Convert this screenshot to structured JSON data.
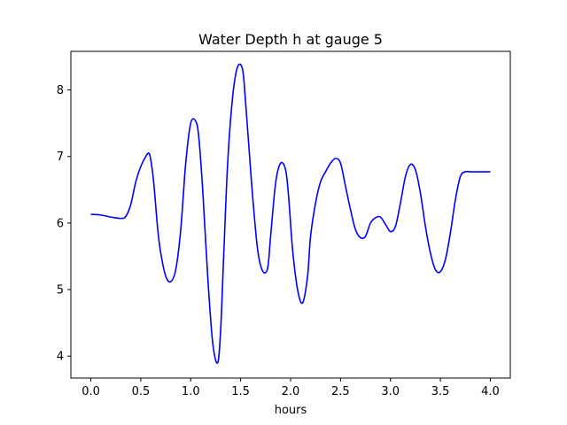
{
  "chart_data": {
    "type": "line",
    "title": "Water Depth h at gauge 5",
    "xlabel": "hours",
    "ylabel": "",
    "xlim": [
      -0.2,
      4.2
    ],
    "ylim": [
      3.67,
      8.58
    ],
    "xticks": [
      0.0,
      0.5,
      1.0,
      1.5,
      2.0,
      2.5,
      3.0,
      3.5,
      4.0
    ],
    "xtick_labels": [
      "0.0",
      "0.5",
      "1.0",
      "1.5",
      "2.0",
      "2.5",
      "3.0",
      "3.5",
      "4.0"
    ],
    "yticks": [
      4,
      5,
      6,
      7,
      8
    ],
    "ytick_labels": [
      "4",
      "5",
      "6",
      "7",
      "8"
    ],
    "grid": false,
    "series": [
      {
        "color": "#0000ff",
        "x": [
          0.0,
          0.1,
          0.2,
          0.3,
          0.35,
          0.4,
          0.45,
          0.5,
          0.55,
          0.58,
          0.6,
          0.63,
          0.67,
          0.7,
          0.75,
          0.8,
          0.85,
          0.9,
          0.95,
          1.0,
          1.05,
          1.08,
          1.12,
          1.17,
          1.22,
          1.27,
          1.3,
          1.33,
          1.37,
          1.42,
          1.47,
          1.52,
          1.55,
          1.58,
          1.62,
          1.67,
          1.72,
          1.77,
          1.8,
          1.85,
          1.9,
          1.95,
          1.98,
          2.02,
          2.07,
          2.12,
          2.17,
          2.2,
          2.25,
          2.3,
          2.35,
          2.4,
          2.45,
          2.5,
          2.55,
          2.6,
          2.65,
          2.7,
          2.75,
          2.8,
          2.85,
          2.9,
          2.95,
          3.0,
          3.05,
          3.1,
          3.15,
          3.2,
          3.25,
          3.3,
          3.35,
          3.4,
          3.45,
          3.5,
          3.55,
          3.6,
          3.65,
          3.7,
          3.75,
          3.8,
          3.85,
          3.9,
          3.95,
          4.0
        ],
        "y": [
          6.13,
          6.12,
          6.09,
          6.07,
          6.1,
          6.28,
          6.62,
          6.85,
          7.0,
          7.05,
          6.95,
          6.6,
          5.9,
          5.55,
          5.2,
          5.12,
          5.3,
          5.9,
          6.9,
          7.5,
          7.53,
          7.3,
          6.5,
          5.2,
          4.2,
          3.9,
          4.4,
          5.5,
          6.9,
          7.9,
          8.35,
          8.3,
          7.8,
          7.2,
          6.4,
          5.6,
          5.28,
          5.32,
          5.8,
          6.6,
          6.9,
          6.8,
          6.4,
          5.6,
          5.0,
          4.8,
          5.2,
          5.8,
          6.3,
          6.62,
          6.77,
          6.9,
          6.97,
          6.9,
          6.55,
          6.2,
          5.9,
          5.78,
          5.8,
          6.0,
          6.08,
          6.09,
          5.98,
          5.87,
          5.95,
          6.3,
          6.7,
          6.88,
          6.8,
          6.45,
          5.95,
          5.55,
          5.3,
          5.27,
          5.45,
          5.85,
          6.35,
          6.7,
          6.77,
          6.77,
          6.77,
          6.77,
          6.77,
          6.77
        ]
      }
    ]
  }
}
